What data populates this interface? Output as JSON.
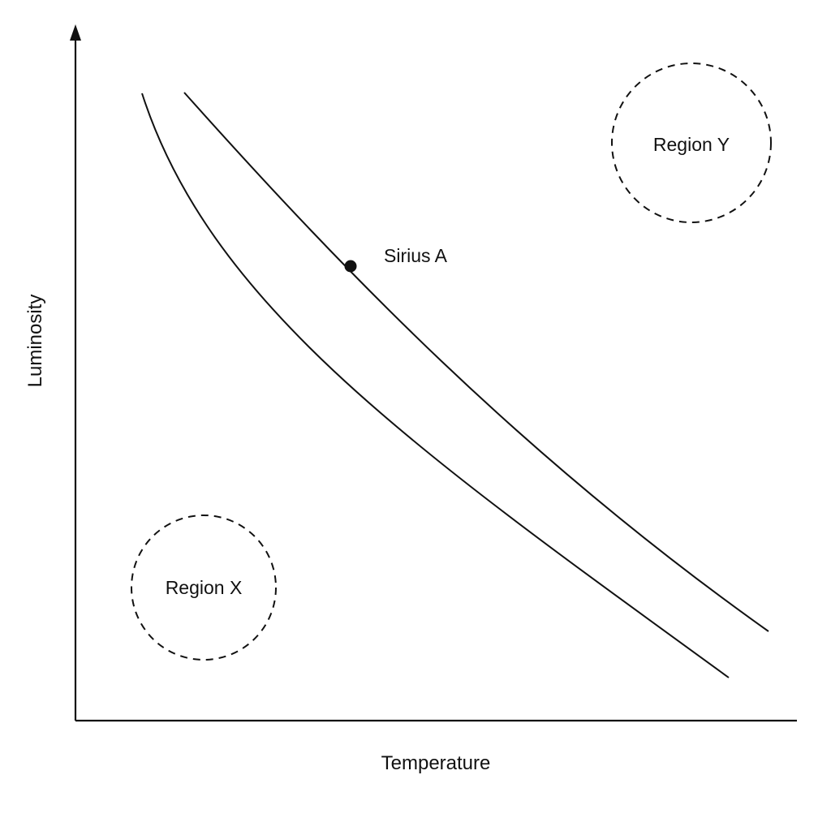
{
  "diagram": {
    "x_axis_label": "Temperature",
    "y_axis_label": "Luminosity",
    "regions": [
      {
        "label": "Region X"
      },
      {
        "label": "Region Y"
      }
    ],
    "star": {
      "label": "Sirius A"
    }
  }
}
